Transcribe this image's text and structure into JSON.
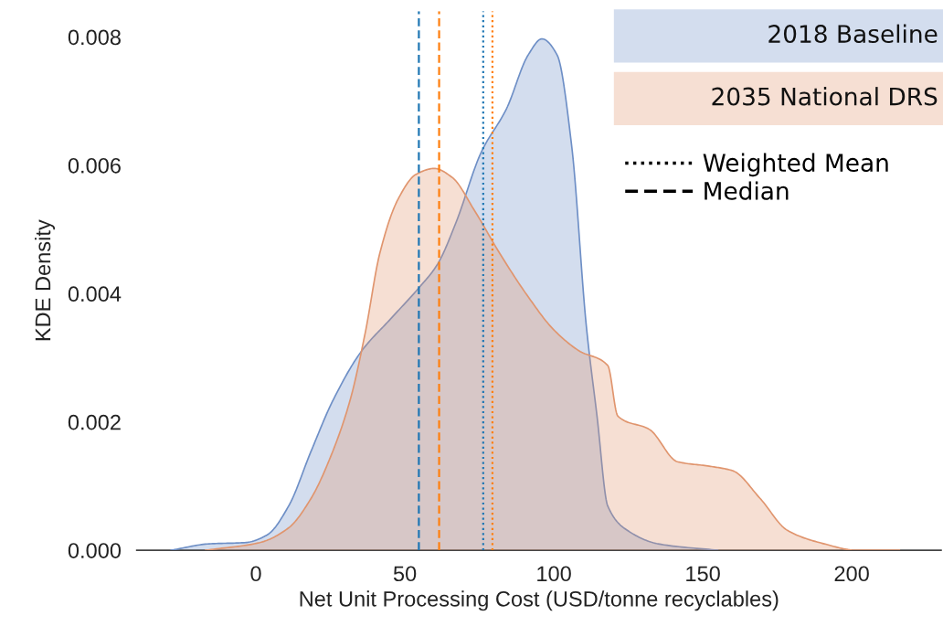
{
  "chart_data": {
    "type": "area",
    "xlabel": "Net Unit Processing Cost (USD/tonne recyclables)",
    "ylabel": "KDE Density",
    "xlim": [
      -40,
      230
    ],
    "xticks": [
      0,
      50,
      100,
      150,
      200
    ],
    "ylim": [
      0,
      0.0084
    ],
    "yticks": [
      {
        "value": 0,
        "label": "0.000"
      },
      {
        "value": 0.002,
        "label": "0.002"
      },
      {
        "value": 0.004,
        "label": "0.004"
      },
      {
        "value": 0.006,
        "label": "0.006"
      },
      {
        "value": 0.008,
        "label": "0.008"
      }
    ],
    "grid": false,
    "legend": "top right",
    "series": [
      {
        "name": "2018 Baseline",
        "color": "#6e8fc6",
        "x": [
          -28.5,
          -15.7,
          -3.5,
          3.8,
          11,
          18.4,
          25.7,
          35.4,
          45.1,
          54.9,
          61,
          67.1,
          75.6,
          84.1,
          91.4,
          96,
          101.1,
          106,
          110.9,
          114.5,
          118.1,
          125,
          135,
          155
        ],
        "values": [
          0,
          0.0001,
          0.00012,
          0.00024,
          0.00069,
          0.00153,
          0.00232,
          0.0031,
          0.0036,
          0.0041,
          0.00446,
          0.0051,
          0.0062,
          0.00688,
          0.00772,
          0.00797,
          0.00772,
          0.0063,
          0.0035,
          0.00209,
          0.00069,
          0.0003,
          0.0001,
          0
        ]
      },
      {
        "name": "2035 National DRS",
        "color": "#e0956e",
        "x": [
          -16.9,
          1.3,
          11,
          18.4,
          25.7,
          31.8,
          36.7,
          41.6,
          47.7,
          53.8,
          59.9,
          65.9,
          73.3,
          81.8,
          91.4,
          99.9,
          108.4,
          118.1,
          121.5,
          132.2,
          141.5,
          152.2,
          160,
          169.2,
          178.4,
          190.8,
          201.5,
          216
        ],
        "values": [
          0,
          0.00012,
          0.00035,
          0.0008,
          0.00153,
          0.00237,
          0.00339,
          0.00463,
          0.00547,
          0.00586,
          0.00595,
          0.00581,
          0.0053,
          0.00463,
          0.00395,
          0.00344,
          0.00311,
          0.00288,
          0.00209,
          0.00188,
          0.00138,
          0.00131,
          0.00124,
          0.00081,
          0.00031,
          0.0001,
          0,
          0
        ]
      }
    ],
    "annotations": [
      "Weighted Mean",
      "Median"
    ],
    "ref_lines": [
      {
        "axis": "x",
        "value": 76.3,
        "color": "#1f77b4",
        "line_style": "dotted"
      },
      {
        "axis": "x",
        "value": 79.4,
        "color": "#ff7f0e",
        "line_style": "dotted"
      },
      {
        "axis": "x",
        "value": 54.7,
        "color": "#1f77b4",
        "line_style": "dashed"
      },
      {
        "axis": "x",
        "value": 61.5,
        "color": "#ff7f0e",
        "line_style": "dashed"
      }
    ]
  }
}
